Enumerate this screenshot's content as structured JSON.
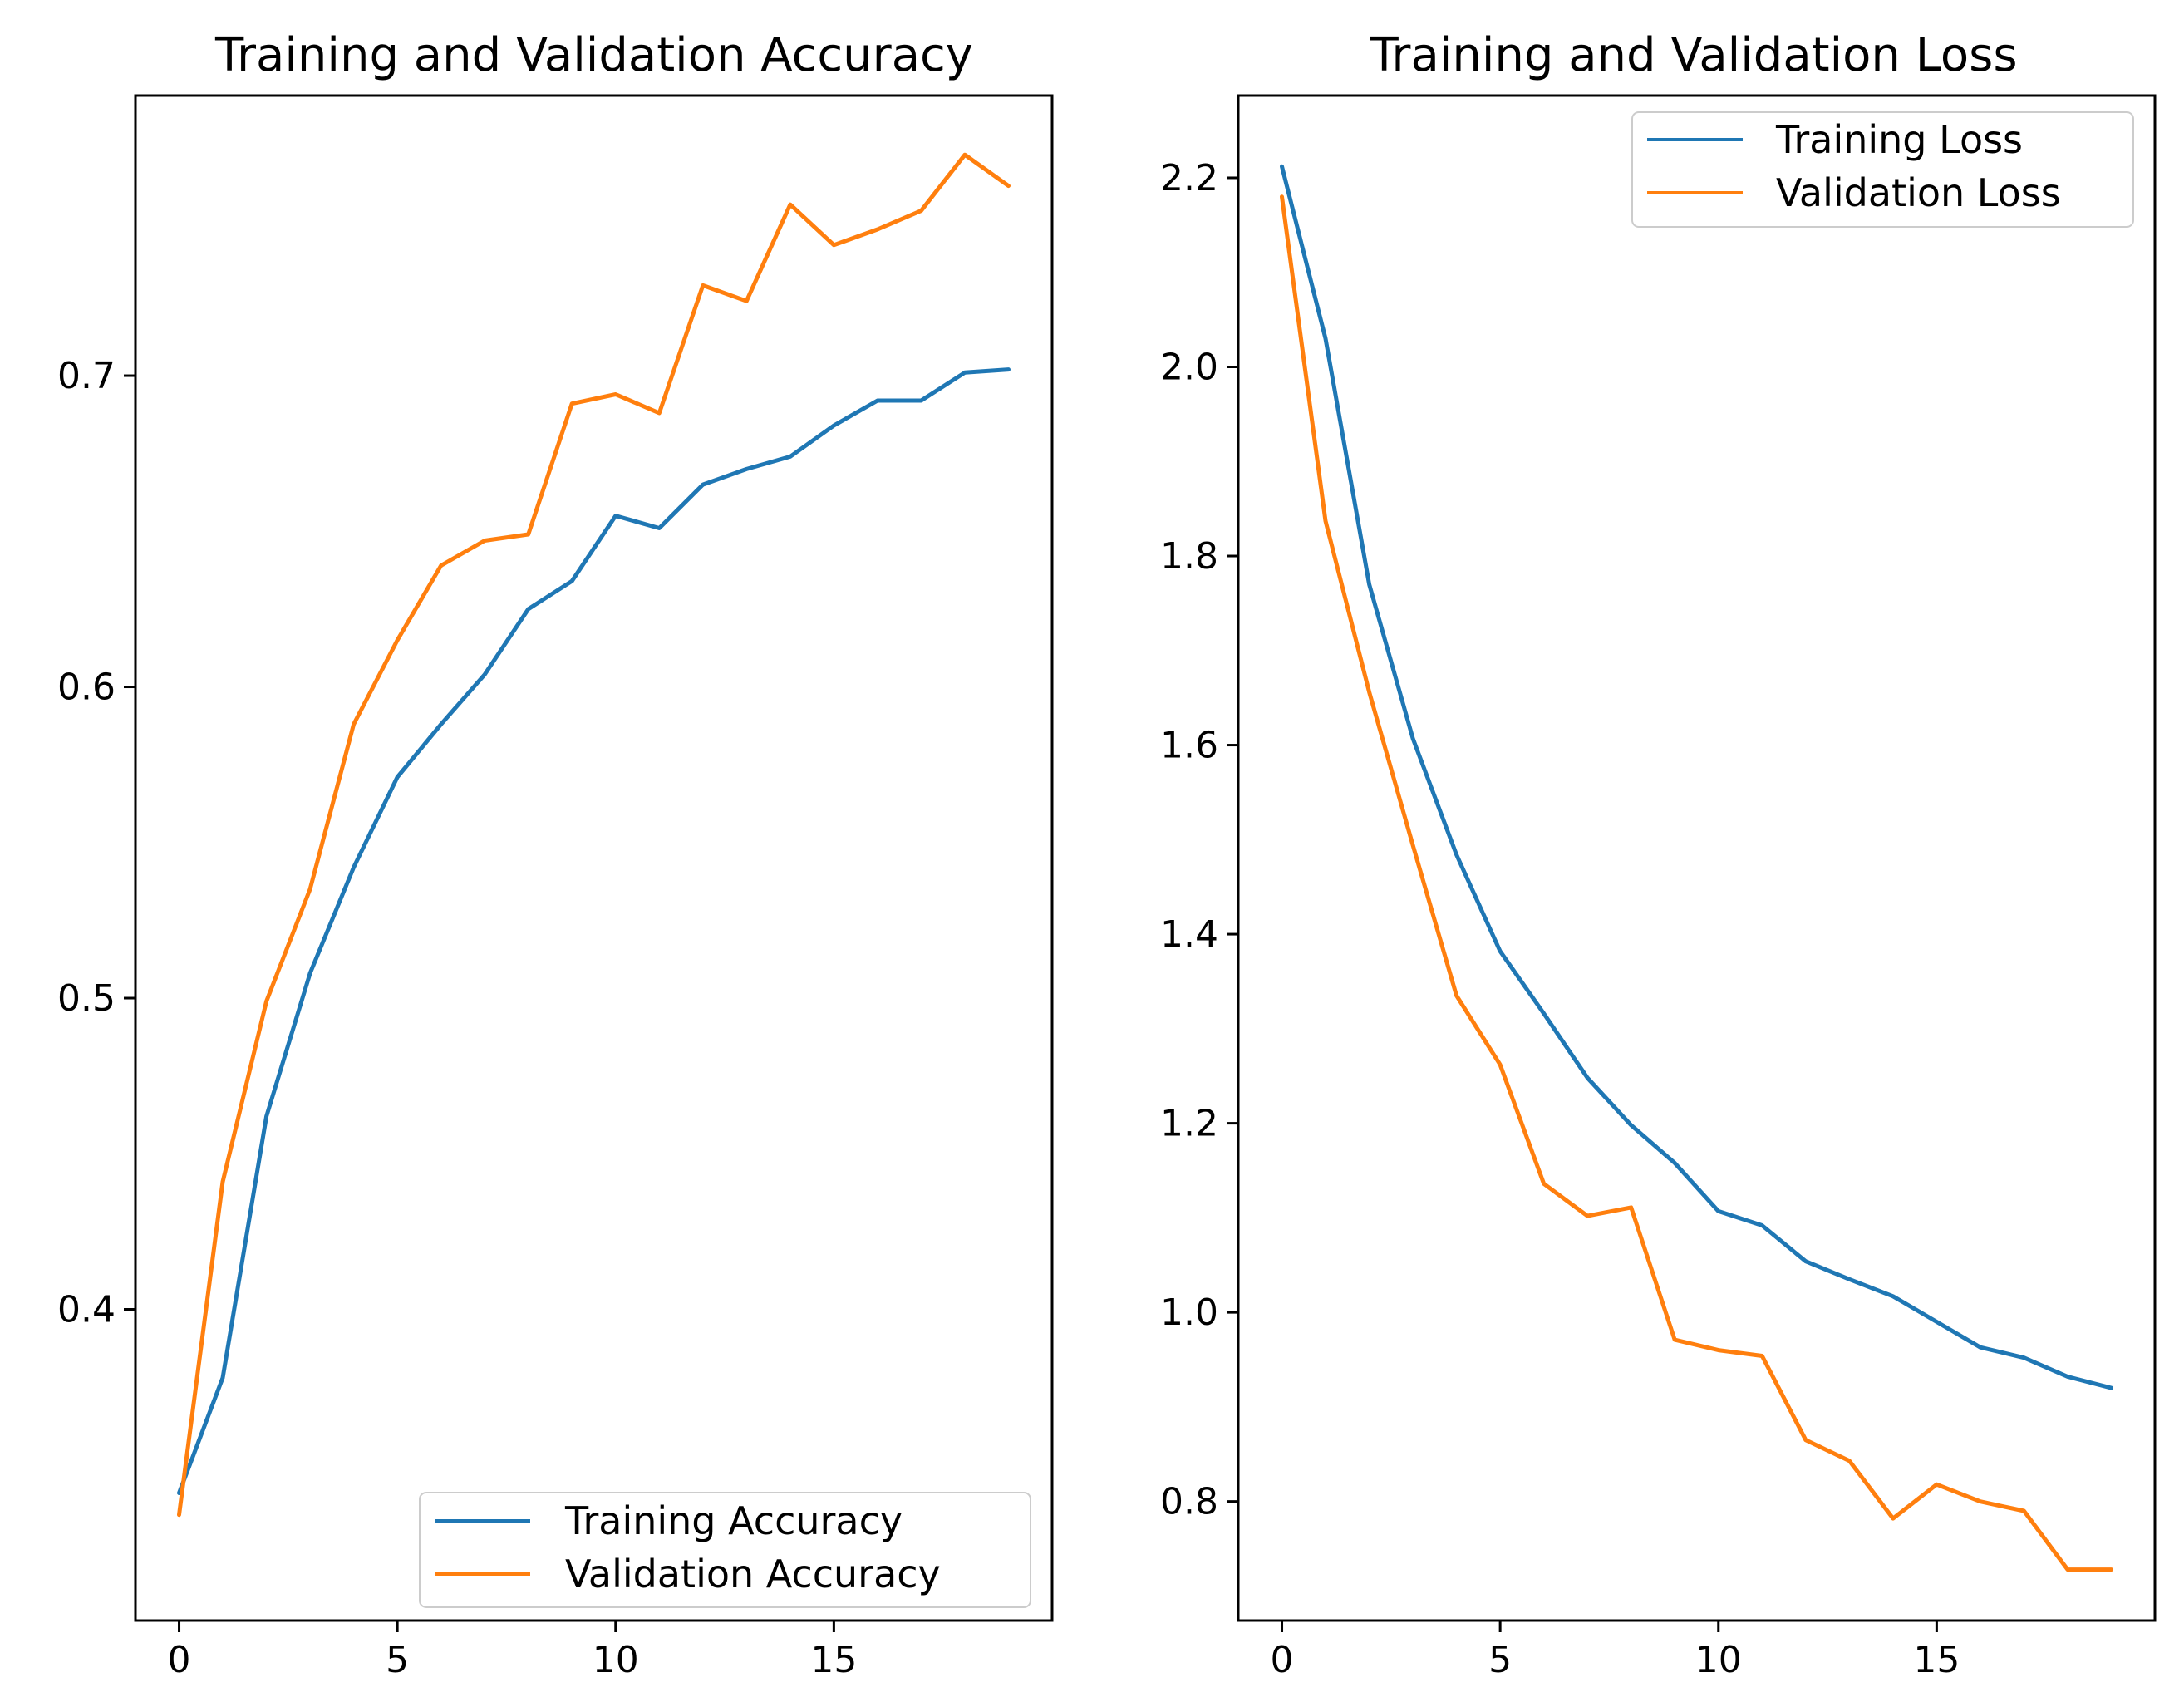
{
  "chart_data": [
    {
      "type": "line",
      "title": "Training and Validation Accuracy",
      "xlabel": "",
      "ylabel": "",
      "xlim": [
        -1,
        20
      ],
      "ylim": [
        0.3,
        0.79
      ],
      "xticks": [
        0,
        5,
        10,
        15
      ],
      "xtick_labels": [
        "0",
        "5",
        "10",
        "15"
      ],
      "yticks": [
        0.4,
        0.5,
        0.6,
        0.7
      ],
      "ytick_labels": [
        "0.4",
        "0.5",
        "0.6",
        "0.7"
      ],
      "grid": false,
      "legend_position": "lower-right",
      "x": [
        0,
        1,
        2,
        3,
        4,
        5,
        6,
        7,
        8,
        9,
        10,
        11,
        12,
        13,
        14,
        15,
        16,
        17,
        18,
        19
      ],
      "series": [
        {
          "name": "Training Accuracy",
          "color": "#1f77b4",
          "values": [
            0.341,
            0.378,
            0.462,
            0.508,
            0.542,
            0.571,
            0.588,
            0.604,
            0.625,
            0.634,
            0.655,
            0.651,
            0.665,
            0.67,
            0.674,
            0.684,
            0.692,
            0.692,
            0.701,
            0.702
          ]
        },
        {
          "name": "Validation Accuracy",
          "color": "#ff7f0e",
          "values": [
            0.334,
            0.441,
            0.499,
            0.535,
            0.588,
            0.615,
            0.639,
            0.647,
            0.649,
            0.691,
            0.694,
            0.688,
            0.729,
            0.724,
            0.755,
            0.742,
            0.747,
            0.753,
            0.771,
            0.761
          ]
        }
      ]
    },
    {
      "type": "line",
      "title": "Training and Validation Loss",
      "xlabel": "",
      "ylabel": "",
      "xlim": [
        -1,
        20
      ],
      "ylim": [
        0.674,
        2.287
      ],
      "xticks": [
        0,
        5,
        10,
        15
      ],
      "xtick_labels": [
        "0",
        "5",
        "10",
        "15"
      ],
      "yticks": [
        0.8,
        1.0,
        1.2,
        1.4,
        1.6,
        1.8,
        2.0,
        2.2
      ],
      "ytick_labels": [
        "0.8",
        "1.0",
        "1.2",
        "1.4",
        "1.6",
        "1.8",
        "2.0",
        "2.2"
      ],
      "grid": false,
      "legend_position": "upper-right",
      "x": [
        0,
        1,
        2,
        3,
        4,
        5,
        6,
        7,
        8,
        9,
        10,
        11,
        12,
        13,
        14,
        15,
        16,
        17,
        18,
        19
      ],
      "series": [
        {
          "name": "Training Loss",
          "color": "#1f77b4",
          "values": [
            2.212,
            2.03,
            1.77,
            1.607,
            1.484,
            1.382,
            1.316,
            1.248,
            1.198,
            1.158,
            1.107,
            1.092,
            1.054,
            1.035,
            1.017,
            0.99,
            0.963,
            0.952,
            0.932,
            0.92
          ]
        },
        {
          "name": "Validation Loss",
          "color": "#ff7f0e",
          "values": [
            2.18,
            1.837,
            1.656,
            1.494,
            1.335,
            1.262,
            1.136,
            1.102,
            1.111,
            0.971,
            0.96,
            0.954,
            0.865,
            0.843,
            0.782,
            0.818,
            0.8,
            0.79,
            0.728,
            0.728
          ]
        }
      ]
    }
  ]
}
